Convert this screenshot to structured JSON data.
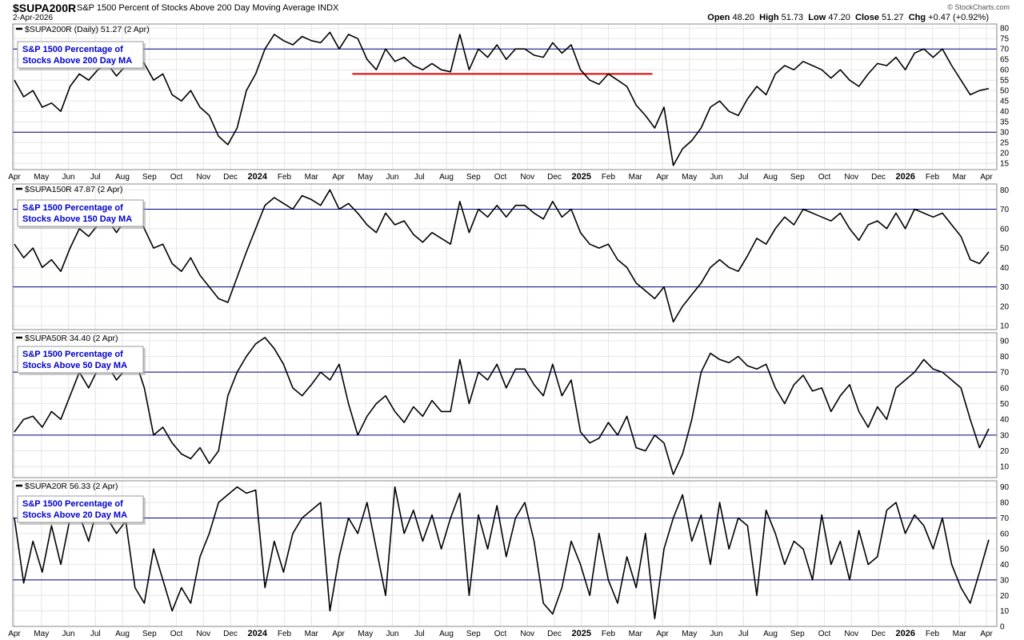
{
  "header": {
    "symbol": "$SUPA200R",
    "name": "S&P 1500 Percent of Stocks Above 200 Day Moving Average",
    "exchange": "INDX",
    "date": "2-Apr-2026",
    "credit": "© StockCharts.com",
    "open_label": "Open",
    "open": "48.20",
    "high_label": "High",
    "high": "51.73",
    "low_label": "Low",
    "low": "47.20",
    "close_label": "Close",
    "close": "51.27",
    "chg_label": "Chg",
    "chg": "+0.47 (+0.92%)"
  },
  "colors": {
    "line": "#000000",
    "reference_line": "#000080",
    "support_line": "#dd0000",
    "label_text": "#0000cc",
    "grid": "#e6e6e6"
  },
  "chart_data": {
    "type": "line",
    "x_axis": {
      "ticks": [
        "Apr",
        "May",
        "Jun",
        "Jul",
        "Aug",
        "Sep",
        "Oct",
        "Nov",
        "Dec",
        "2024",
        "Feb",
        "Mar",
        "Apr",
        "May",
        "Jun",
        "Jul",
        "Aug",
        "Sep",
        "Oct",
        "Nov",
        "Dec",
        "2025",
        "Feb",
        "Mar",
        "Apr",
        "May",
        "Jun",
        "Jul",
        "Aug",
        "Sep",
        "Oct",
        "Nov",
        "Dec",
        "2026",
        "Feb",
        "Mar",
        "Apr"
      ],
      "bold_ticks": [
        "2024",
        "2025",
        "2026"
      ]
    },
    "panels": [
      {
        "legend": "$SUPA200R (Daily) 51.27 (2 Apr)",
        "label": "S&P 1500 Percentage of Stocks Above 200 Day MA",
        "ylim": [
          12,
          82
        ],
        "yticks": [
          15,
          20,
          25,
          30,
          35,
          40,
          45,
          50,
          55,
          60,
          65,
          70,
          75,
          80
        ],
        "ref_lines": [
          70,
          30
        ],
        "support_line": {
          "y": 58,
          "from": 0.345,
          "to": 0.65
        },
        "values": [
          55,
          47,
          50,
          42,
          44,
          40,
          52,
          58,
          55,
          60,
          63,
          57,
          62,
          68,
          63,
          55,
          58,
          48,
          45,
          50,
          42,
          38,
          28,
          24,
          32,
          50,
          58,
          70,
          77,
          74,
          72,
          76,
          74,
          73,
          78,
          70,
          77,
          75,
          65,
          60,
          70,
          64,
          66,
          62,
          60,
          63,
          60,
          59,
          77,
          60,
          70,
          66,
          72,
          65,
          70,
          70,
          67,
          66,
          73,
          68,
          72,
          60,
          55,
          53,
          58,
          55,
          52,
          43,
          38,
          32,
          42,
          14,
          22,
          26,
          32,
          42,
          45,
          40,
          38,
          46,
          52,
          48,
          58,
          62,
          60,
          64,
          62,
          60,
          56,
          60,
          55,
          52,
          58,
          63,
          62,
          66,
          60,
          68,
          70,
          66,
          70,
          62,
          55,
          48,
          50,
          51
        ]
      },
      {
        "legend": "$SUPA150R 47.87 (2 Apr)",
        "label": "S&P 1500 Percentage of Stocks Above 150 Day MA",
        "ylim": [
          8,
          83
        ],
        "yticks": [
          10,
          20,
          30,
          40,
          50,
          60,
          70,
          80
        ],
        "ref_lines": [
          70,
          30
        ],
        "values": [
          52,
          45,
          50,
          40,
          44,
          38,
          50,
          60,
          56,
          62,
          65,
          58,
          65,
          71,
          60,
          50,
          52,
          42,
          38,
          45,
          36,
          30,
          24,
          22,
          35,
          48,
          60,
          72,
          76,
          73,
          70,
          77,
          75,
          72,
          80,
          70,
          73,
          68,
          62,
          58,
          68,
          62,
          64,
          57,
          53,
          58,
          55,
          52,
          74,
          58,
          70,
          66,
          72,
          66,
          72,
          72,
          68,
          65,
          74,
          66,
          70,
          58,
          52,
          50,
          52,
          44,
          40,
          32,
          28,
          24,
          30,
          12,
          20,
          26,
          32,
          40,
          44,
          40,
          38,
          46,
          55,
          52,
          60,
          66,
          62,
          70,
          68,
          66,
          64,
          68,
          60,
          54,
          62,
          64,
          60,
          68,
          60,
          70,
          68,
          66,
          68,
          62,
          56,
          44,
          42,
          48
        ]
      },
      {
        "legend": "$SUPA50R 34.40 (2 Apr)",
        "label": "S&P 1500 Percentage of Stocks Above 50 Day MA",
        "ylim": [
          3,
          95
        ],
        "yticks": [
          10,
          20,
          30,
          40,
          50,
          60,
          70,
          80,
          90
        ],
        "ref_lines": [
          70,
          30
        ],
        "values": [
          32,
          40,
          42,
          35,
          45,
          40,
          55,
          70,
          60,
          72,
          75,
          65,
          72,
          78,
          60,
          30,
          35,
          25,
          18,
          15,
          22,
          12,
          20,
          55,
          70,
          80,
          88,
          92,
          85,
          75,
          60,
          55,
          62,
          70,
          65,
          75,
          50,
          30,
          42,
          50,
          55,
          45,
          38,
          48,
          42,
          52,
          45,
          45,
          78,
          50,
          70,
          65,
          75,
          60,
          72,
          72,
          62,
          55,
          75,
          55,
          65,
          32,
          25,
          28,
          38,
          30,
          42,
          22,
          20,
          30,
          25,
          5,
          18,
          40,
          70,
          82,
          78,
          76,
          80,
          74,
          72,
          75,
          60,
          50,
          62,
          68,
          58,
          60,
          45,
          55,
          62,
          45,
          35,
          48,
          40,
          60,
          65,
          70,
          78,
          72,
          70,
          65,
          60,
          40,
          22,
          34
        ]
      },
      {
        "legend": "$SUPA20R 56.33 (2 Apr)",
        "label": "S&P 1500 Percentage of Stocks Above 20 Day MA",
        "ylim": [
          0,
          94
        ],
        "yticks": [
          0,
          10,
          20,
          30,
          40,
          50,
          60,
          70,
          80,
          90
        ],
        "ref_lines": [
          70,
          30
        ],
        "values": [
          70,
          28,
          55,
          35,
          65,
          40,
          70,
          72,
          55,
          78,
          70,
          60,
          68,
          25,
          15,
          50,
          30,
          10,
          25,
          15,
          45,
          60,
          80,
          85,
          90,
          86,
          88,
          25,
          55,
          35,
          60,
          70,
          75,
          80,
          10,
          45,
          70,
          60,
          80,
          50,
          20,
          90,
          60,
          75,
          55,
          72,
          50,
          70,
          86,
          20,
          72,
          50,
          78,
          45,
          70,
          80,
          55,
          15,
          8,
          25,
          55,
          40,
          20,
          60,
          30,
          15,
          45,
          25,
          60,
          5,
          50,
          70,
          85,
          55,
          72,
          40,
          80,
          50,
          70,
          65,
          20,
          75,
          60,
          40,
          55,
          50,
          30,
          72,
          40,
          55,
          30,
          62,
          40,
          45,
          75,
          80,
          60,
          72,
          65,
          50,
          70,
          40,
          25,
          15,
          35,
          56
        ]
      }
    ]
  }
}
